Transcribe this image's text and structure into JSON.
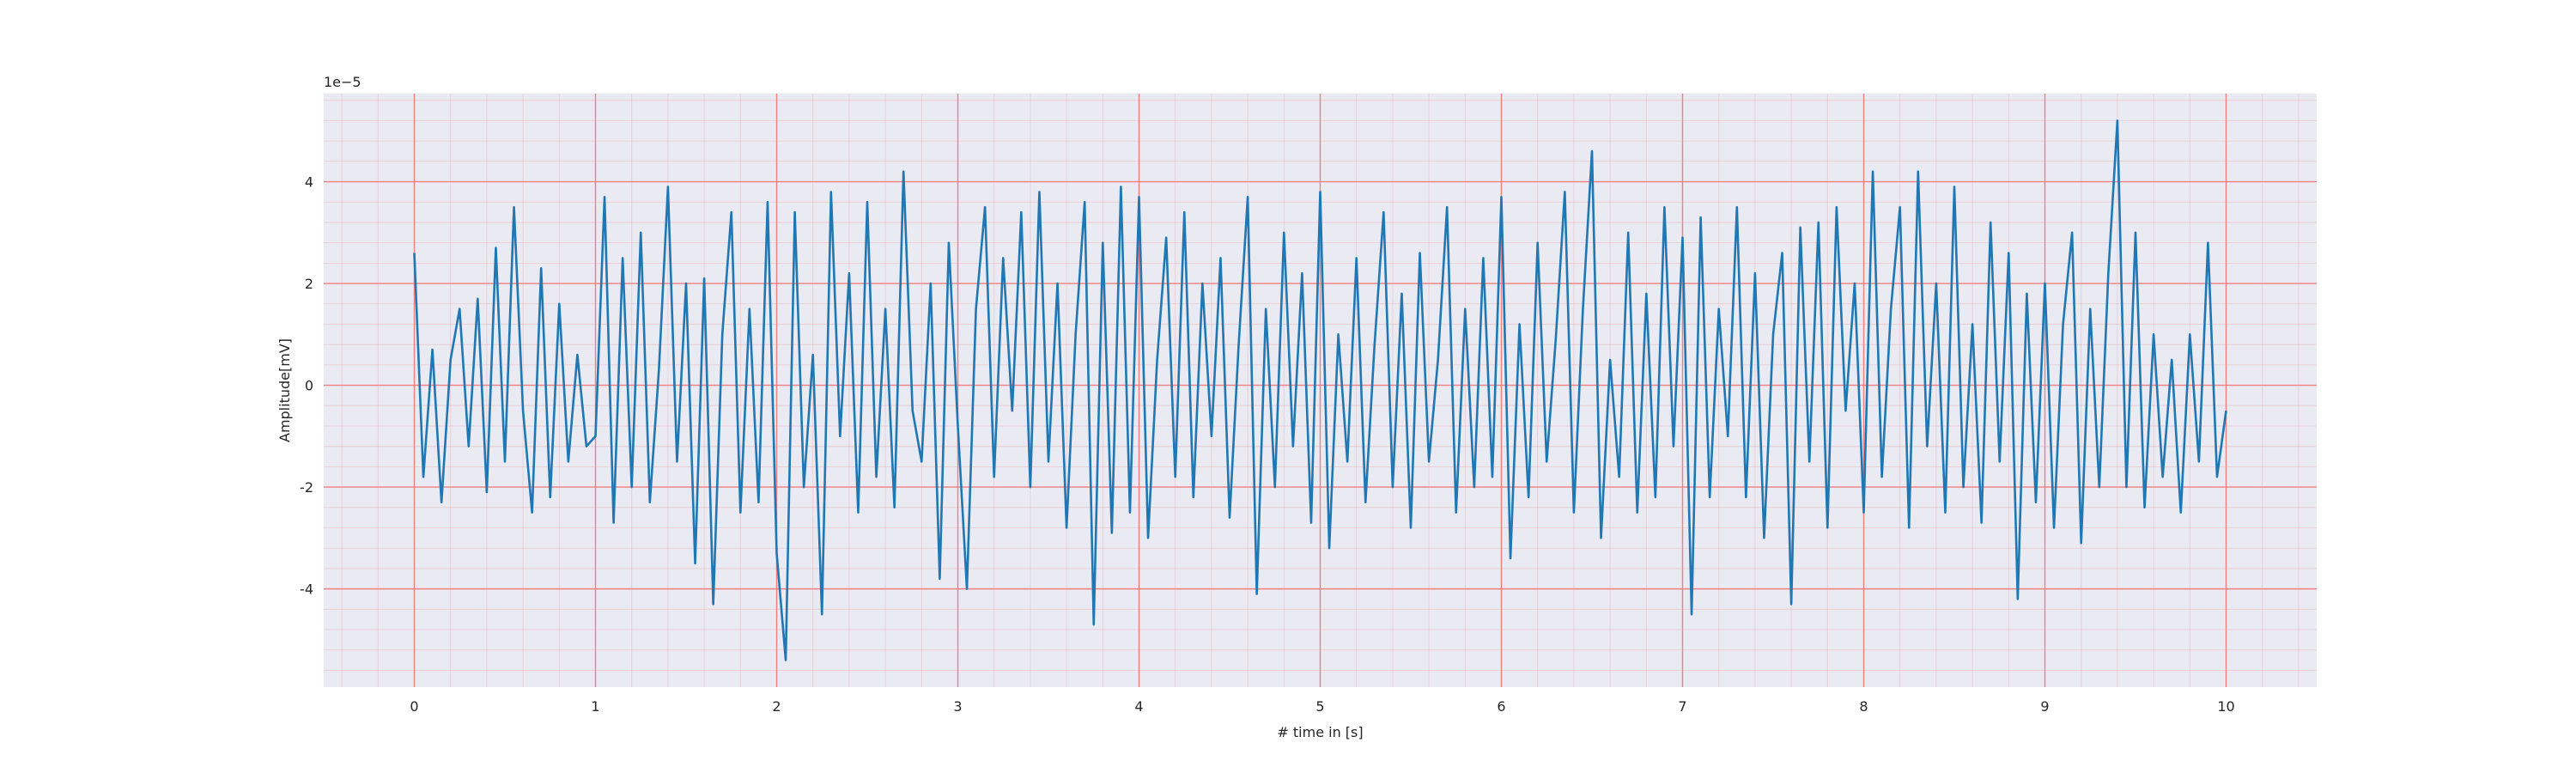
{
  "chart_data": {
    "type": "line",
    "xlabel": "# time in [s]",
    "ylabel": "Amplitude[mV]",
    "y_offset_label": "1e−5",
    "color": "#1f77b4",
    "background": "#eaeaf2",
    "grid": true,
    "grid_color": "#f08080",
    "minor_grid": true,
    "xlim": [
      -0.5,
      10.5
    ],
    "ylim": [
      -5.93,
      5.73
    ],
    "xticks": [
      0,
      1,
      2,
      3,
      4,
      5,
      6,
      7,
      8,
      9,
      10
    ],
    "yticks": [
      -4,
      -2,
      0,
      2,
      4
    ],
    "xminorticks": [
      -0.4,
      -0.2,
      0.2,
      0.4,
      0.6,
      0.8,
      1.2,
      1.4,
      1.6,
      1.8,
      2.2,
      2.4,
      2.6,
      2.8,
      3.2,
      3.4,
      3.6,
      3.8,
      4.2,
      4.4,
      4.6,
      4.8,
      5.2,
      5.4,
      5.6,
      5.8,
      6.2,
      6.4,
      6.6,
      6.8,
      7.2,
      7.4,
      7.6,
      7.8,
      8.2,
      8.4,
      8.6,
      8.8,
      9.2,
      9.4,
      9.6,
      9.8,
      10.2,
      10.4
    ],
    "yminorticks": [
      -5.6,
      -5.2,
      -4.8,
      -4.4,
      -3.6,
      -3.2,
      -2.8,
      -2.4,
      -1.6,
      -1.2,
      -0.8,
      -0.4,
      0.4,
      0.8,
      1.2,
      1.6,
      2.4,
      2.8,
      3.2,
      3.6,
      4.4,
      4.8,
      5.2,
      5.6
    ],
    "x": [
      0,
      0.05,
      0.1,
      0.15,
      0.2,
      0.25,
      0.3,
      0.35,
      0.4,
      0.45,
      0.5,
      0.55,
      0.6,
      0.65,
      0.7,
      0.75,
      0.8,
      0.85,
      0.9,
      0.95,
      1,
      1.05,
      1.1,
      1.15,
      1.2,
      1.25,
      1.3,
      1.35,
      1.4,
      1.45,
      1.5,
      1.55,
      1.6,
      1.65,
      1.7,
      1.75,
      1.8,
      1.85,
      1.9,
      1.95,
      2,
      2.05,
      2.1,
      2.15,
      2.2,
      2.25,
      2.3,
      2.35,
      2.4,
      2.45,
      2.5,
      2.55,
      2.6,
      2.65,
      2.7,
      2.75,
      2.8,
      2.85,
      2.9,
      2.95,
      3,
      3.05,
      3.1,
      3.15,
      3.2,
      3.25,
      3.3,
      3.35,
      3.4,
      3.45,
      3.5,
      3.55,
      3.6,
      3.65,
      3.7,
      3.75,
      3.8,
      3.85,
      3.9,
      3.95,
      4,
      4.05,
      4.1,
      4.15,
      4.2,
      4.25,
      4.3,
      4.35,
      4.4,
      4.45,
      4.5,
      4.55,
      4.6,
      4.65,
      4.7,
      4.75,
      4.8,
      4.85,
      4.9,
      4.95,
      5,
      5.05,
      5.1,
      5.15,
      5.2,
      5.25,
      5.3,
      5.35,
      5.4,
      5.45,
      5.5,
      5.55,
      5.6,
      5.65,
      5.7,
      5.75,
      5.8,
      5.85,
      5.9,
      5.95,
      6,
      6.05,
      6.1,
      6.15,
      6.2,
      6.25,
      6.3,
      6.35,
      6.4,
      6.45,
      6.5,
      6.55,
      6.6,
      6.65,
      6.7,
      6.75,
      6.8,
      6.85,
      6.9,
      6.95,
      7,
      7.05,
      7.1,
      7.15,
      7.2,
      7.25,
      7.3,
      7.35,
      7.4,
      7.45,
      7.5,
      7.55,
      7.6,
      7.65,
      7.7,
      7.75,
      7.8,
      7.85,
      7.9,
      7.95,
      8,
      8.05,
      8.1,
      8.15,
      8.2,
      8.25,
      8.3,
      8.35,
      8.4,
      8.45,
      8.5,
      8.55,
      8.6,
      8.65,
      8.7,
      8.75,
      8.8,
      8.85,
      8.9,
      8.95,
      9,
      9.05,
      9.1,
      9.15,
      9.2,
      9.25,
      9.3,
      9.35,
      9.4,
      9.45,
      9.5,
      9.55,
      9.6,
      9.65,
      9.7,
      9.75,
      9.8,
      9.85,
      9.9,
      9.95,
      10
    ],
    "values": [
      2.6,
      -1.8,
      0.7,
      -2.3,
      0.5,
      1.5,
      -1.2,
      1.7,
      -2.1,
      2.7,
      -1.5,
      3.5,
      -0.5,
      -2.5,
      2.3,
      -2.2,
      1.6,
      -1.5,
      0.6,
      -1.2,
      -1.0,
      3.7,
      -2.7,
      2.5,
      -2.0,
      3.0,
      -2.3,
      0.3,
      3.9,
      -1.5,
      2.0,
      -3.5,
      2.1,
      -4.3,
      1.0,
      3.4,
      -2.5,
      1.5,
      -2.3,
      3.6,
      -3.3,
      -5.4,
      3.4,
      -2.0,
      0.6,
      -4.5,
      3.8,
      -1.0,
      2.2,
      -2.5,
      3.6,
      -1.8,
      1.5,
      -2.4,
      4.2,
      -0.5,
      -1.5,
      2.0,
      -3.8,
      2.8,
      -0.8,
      -4.0,
      1.5,
      3.5,
      -1.8,
      2.5,
      -0.5,
      3.4,
      -2.0,
      3.8,
      -1.5,
      2.0,
      -2.8,
      1.0,
      3.6,
      -4.7,
      2.8,
      -2.9,
      3.9,
      -2.5,
      3.7,
      -3.0,
      0.5,
      2.9,
      -1.8,
      3.4,
      -2.2,
      2.0,
      -1.0,
      2.5,
      -2.6,
      0.8,
      3.7,
      -4.1,
      1.5,
      -2.0,
      3.0,
      -1.2,
      2.2,
      -2.7,
      3.8,
      -3.2,
      1.0,
      -1.5,
      2.5,
      -2.3,
      0.8,
      3.4,
      -2.0,
      1.8,
      -2.8,
      2.6,
      -1.5,
      0.5,
      3.5,
      -2.5,
      1.5,
      -2.0,
      2.5,
      -1.8,
      3.7,
      -3.4,
      1.2,
      -2.2,
      2.8,
      -1.5,
      0.9,
      3.8,
      -2.5,
      1.5,
      4.6,
      -3.0,
      0.5,
      -1.8,
      3.0,
      -2.5,
      1.8,
      -2.2,
      3.5,
      -1.2,
      2.9,
      -4.5,
      3.3,
      -2.2,
      1.5,
      -1.0,
      3.5,
      -2.2,
      2.2,
      -3.0,
      1.0,
      2.6,
      -4.3,
      3.1,
      -1.5,
      3.2,
      -2.8,
      3.5,
      -0.5,
      2.0,
      -2.5,
      4.2,
      -1.8,
      1.5,
      3.5,
      -2.8,
      4.2,
      -1.2,
      2.0,
      -2.5,
      3.9,
      -2.0,
      1.2,
      -2.7,
      3.2,
      -1.5,
      2.6,
      -4.2,
      1.8,
      -2.3,
      2.0,
      -2.8,
      1.2,
      3.0,
      -3.1,
      1.5,
      -2.0,
      2.2,
      5.2,
      -2.0,
      3.0,
      -2.4,
      1.0,
      -1.8,
      0.5,
      -2.5,
      1.0,
      -1.5,
      2.8,
      -1.8,
      -0.5
    ]
  }
}
